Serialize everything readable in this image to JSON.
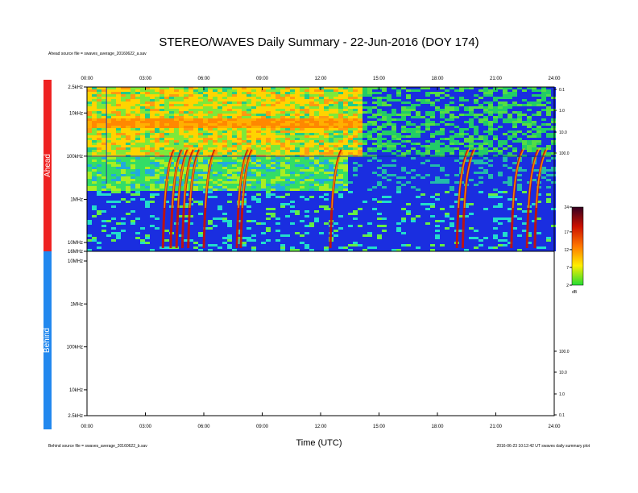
{
  "title": "STEREO/WAVES Daily Summary - 22-Jun-2016 (DOY 174)",
  "ahead_source": "Ahead source file = swaves_average_20160622_a.sav",
  "behind_source": "Behind source file = swaves_average_20160622_b.sav",
  "footer_right": "2016-06-23 10:12:42 UT  swaves daily summary plot",
  "colors": {
    "ahead_bar": "#ee2222",
    "behind_bar": "#2288ee",
    "background_blue": "#1a2ee0",
    "burst_red": "#cc1100"
  },
  "chart_data": [
    {
      "type": "heatmap",
      "panel": "Ahead",
      "x_axis": {
        "label": "Time (UTC)",
        "range_hours": [
          0,
          24
        ],
        "ticks": [
          "00:00",
          "03:00",
          "06:00",
          "09:00",
          "12:00",
          "15:00",
          "18:00",
          "21:00",
          "24:00"
        ]
      },
      "y_axis": {
        "scale": "log",
        "range_hz": [
          16000000,
          2500
        ],
        "ticks": [
          "2.5kHz",
          "10kHz",
          "100kHz",
          "1MHz",
          "10MHz",
          "16MHz"
        ]
      },
      "right_axis_ticks": [
        "0.1",
        "1.0",
        "10.0",
        "100.0"
      ],
      "colorbar": {
        "unit": "dB",
        "range": [
          2,
          24
        ],
        "ticks": [
          "24",
          "17",
          "12",
          "7",
          "2"
        ]
      },
      "features": {
        "type_iii_bursts_utc_hours": [
          3.9,
          4.3,
          4.6,
          4.9,
          5.2,
          6.0,
          7.7,
          7.9,
          12.5,
          19.0,
          19.3,
          21.8,
          22.6,
          23.0
        ],
        "afternoon_data_gap_start_utc_hours": 14.0
      }
    },
    {
      "type": "heatmap",
      "panel": "Behind",
      "x_axis": {
        "label": "Time (UTC)",
        "range_hours": [
          0,
          24
        ],
        "ticks": [
          "00:00",
          "03:00",
          "06:00",
          "09:00",
          "12:00",
          "15:00",
          "18:00",
          "21:00",
          "24:00"
        ]
      },
      "y_axis": {
        "scale": "log",
        "range_hz": [
          10000000,
          2500
        ],
        "ticks": [
          "10MHz",
          "1MHz",
          "100kHz",
          "10kHz",
          "2.5kHz"
        ]
      },
      "right_axis_ticks": [
        "100.0",
        "10.0",
        "1.0",
        "0.1"
      ],
      "data": []
    }
  ],
  "labels": {
    "ahead": "Ahead",
    "behind": "Behind"
  }
}
